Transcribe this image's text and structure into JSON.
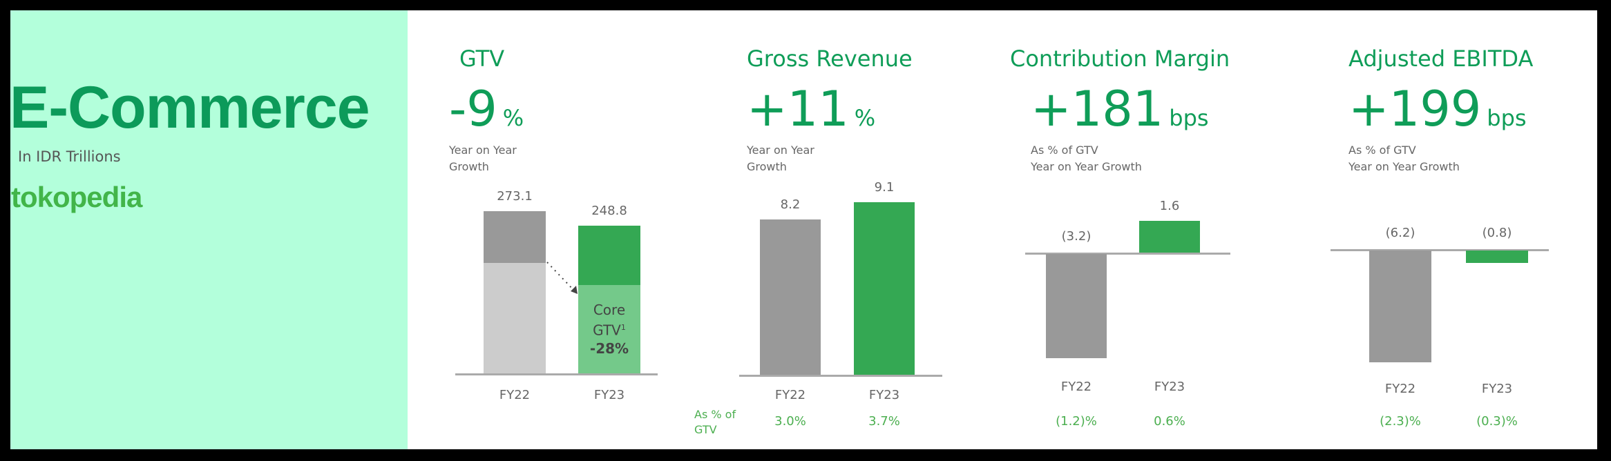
{
  "section": {
    "title": "E-Commerce",
    "subtitle": "In IDR Trillions",
    "logo_text": "tokopedia"
  },
  "colors": {
    "accent": "#0f9d58",
    "bar_green": "#34a853",
    "bar_light_green": "#74c98a",
    "bar_gray": "#999999",
    "bar_light_gray": "#cccccc",
    "mint": "#b3ffdb"
  },
  "panels": [
    {
      "title": "GTV",
      "headline": "-9",
      "unit": "%",
      "desc_lines": [
        "Year on Year",
        "Growth"
      ]
    },
    {
      "title": "Gross Revenue",
      "headline": "+11",
      "unit": "%",
      "desc_lines": [
        "Year on Year",
        "Growth"
      ]
    },
    {
      "title": "Contribution Margin",
      "headline": "+181",
      "unit": "bps",
      "desc_lines": [
        "As % of GTV",
        "Year on Year Growth"
      ]
    },
    {
      "title": "Adjusted EBITDA",
      "headline": "+199",
      "unit": "bps",
      "desc_lines": [
        "As % of GTV",
        "Year on Year Growth"
      ]
    }
  ],
  "pct_row_label": [
    "As % of",
    "GTV"
  ],
  "chart_data": [
    {
      "type": "bar",
      "title": "GTV",
      "categories": [
        "FY22",
        "FY23"
      ],
      "values": [
        273.1,
        248.8
      ],
      "value_labels": [
        "273.1",
        "248.8"
      ],
      "core_gtv": {
        "label": "Core",
        "label2": "GTV",
        "sup": "1",
        "change": "-28%"
      }
    },
    {
      "type": "bar",
      "title": "Gross Revenue",
      "categories": [
        "FY22",
        "FY23"
      ],
      "values": [
        8.2,
        9.1
      ],
      "value_labels": [
        "8.2",
        "9.1"
      ],
      "pct_of_gtv": [
        "3.0%",
        "3.7%"
      ]
    },
    {
      "type": "bar",
      "title": "Contribution Margin",
      "categories": [
        "FY22",
        "FY23"
      ],
      "values": [
        -3.2,
        1.6
      ],
      "value_labels": [
        "(3.2)",
        "1.6"
      ],
      "pct_of_gtv": [
        "(1.2)%",
        "0.6%"
      ]
    },
    {
      "type": "bar",
      "title": "Adjusted EBITDA",
      "categories": [
        "FY22",
        "FY23"
      ],
      "values": [
        -6.2,
        -0.8
      ],
      "value_labels": [
        "(6.2)",
        "(0.8)"
      ],
      "pct_of_gtv": [
        "(2.3)%",
        "(0.3)%"
      ]
    }
  ]
}
